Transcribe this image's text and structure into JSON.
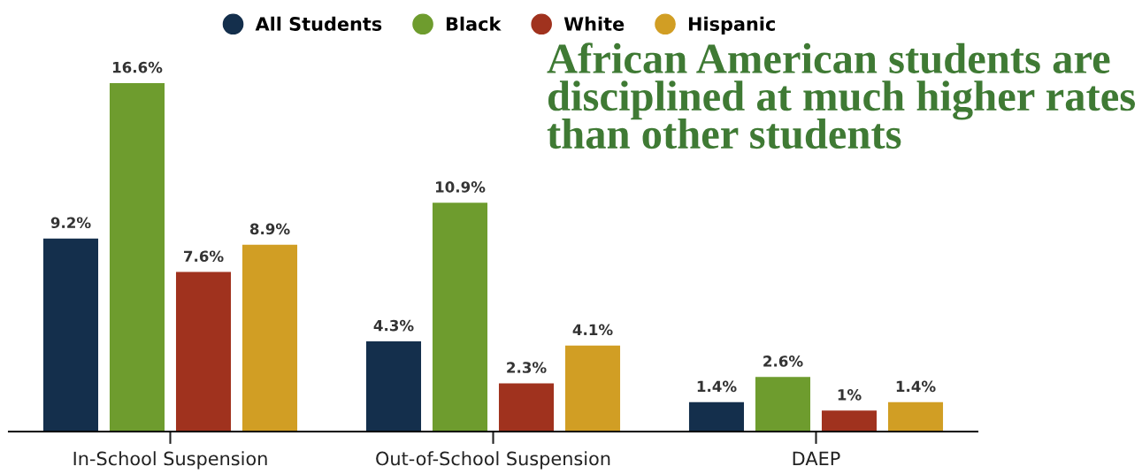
{
  "chart_data": {
    "type": "bar",
    "title": "African American students are disciplined at much higher rates than other students",
    "categories": [
      "In-School Suspension",
      "Out-of-School Suspension",
      "DAEP"
    ],
    "series": [
      {
        "name": "All Students",
        "color": "#142f4c",
        "values": [
          9.2,
          4.3,
          1.4
        ],
        "value_labels": [
          "9.2%",
          "4.3%",
          "1.4%"
        ]
      },
      {
        "name": "Black",
        "color": "#6e9c2e",
        "values": [
          16.6,
          10.9,
          2.6
        ],
        "value_labels": [
          "16.6%",
          "10.9%",
          "2.6%"
        ]
      },
      {
        "name": "White",
        "color": "#a0321e",
        "values": [
          7.6,
          2.3,
          1
        ],
        "value_labels": [
          "7.6%",
          "2.3%",
          "1%"
        ]
      },
      {
        "name": "Hispanic",
        "color": "#d19e24",
        "values": [
          8.9,
          4.1,
          1.4
        ],
        "value_labels": [
          "8.9%",
          "4.1%",
          "1.4%"
        ]
      }
    ],
    "legend": "top"
  }
}
